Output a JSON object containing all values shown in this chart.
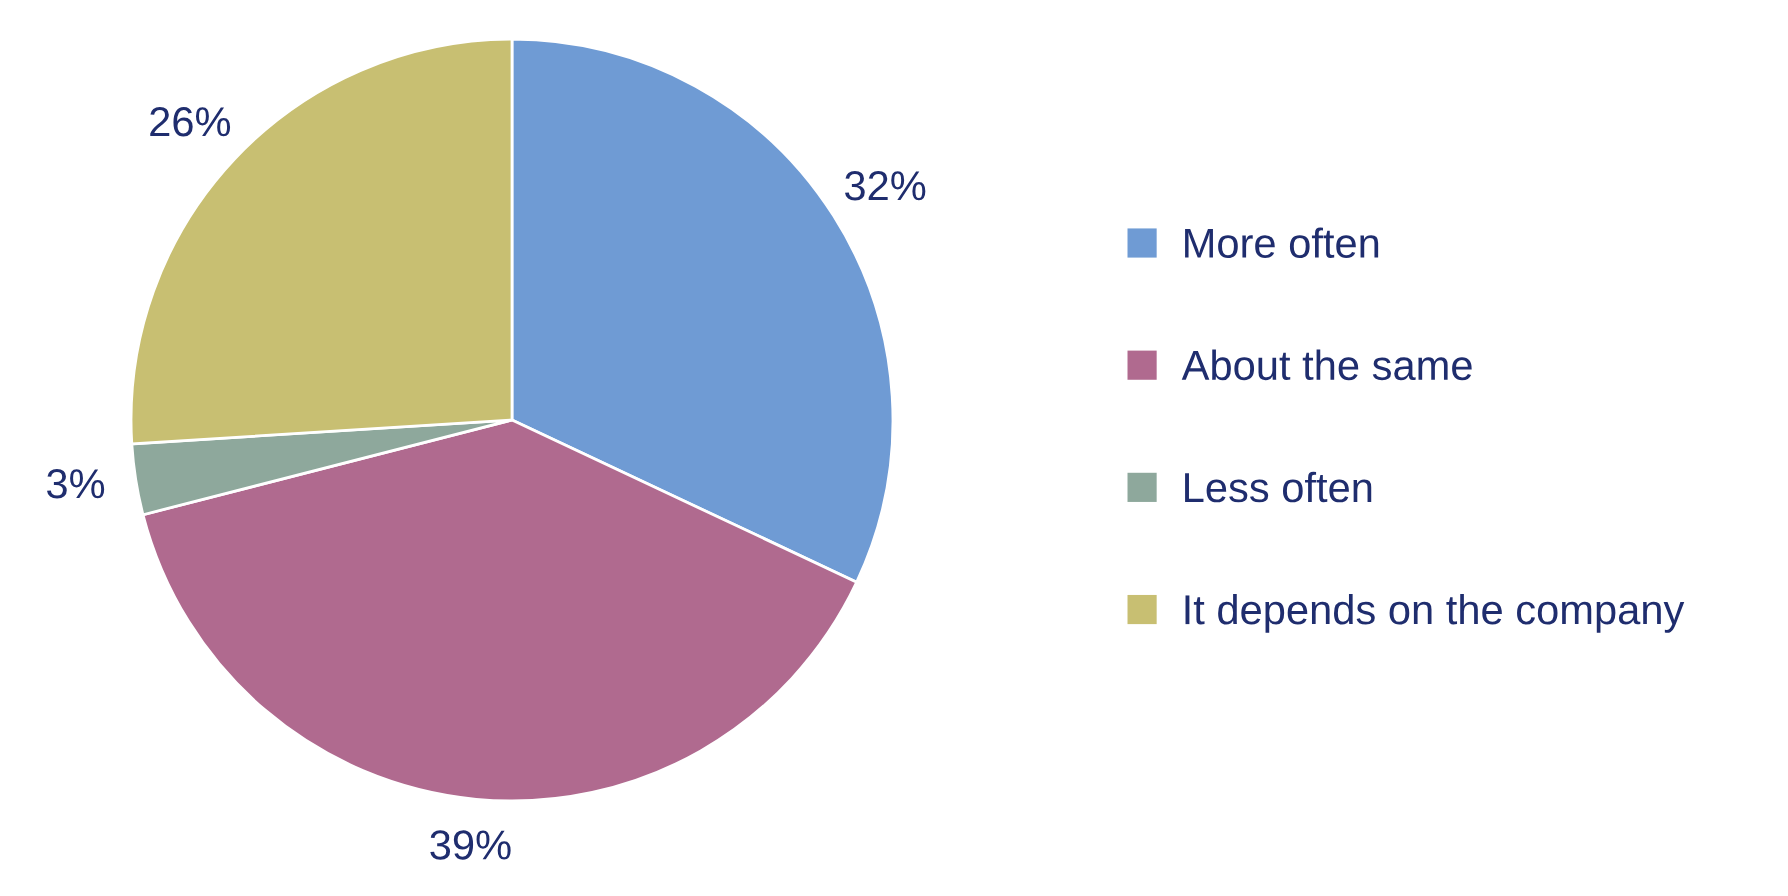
{
  "chart_data": {
    "type": "pie",
    "categories": [
      "More often",
      "About the same",
      "Less often",
      "It depends on the company"
    ],
    "values": [
      32,
      39,
      3,
      26
    ],
    "colors": [
      "#6f9bd4",
      "#b06a8f",
      "#8ea89c",
      "#c8bf72"
    ],
    "value_labels": [
      "32%",
      "39%",
      "3%",
      "26%"
    ],
    "legend": "right"
  }
}
